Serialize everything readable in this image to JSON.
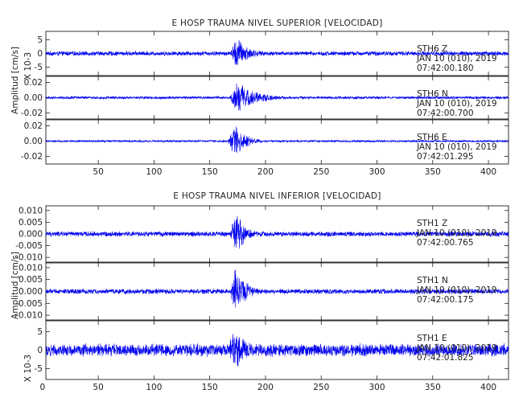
{
  "chart_data": [
    {
      "type": "line",
      "title": "E HOSP TRAUMA NIVEL SUPERIOR [VELOCIDAD]",
      "ylabel": "Amplitud [cm/s]",
      "xlim": [
        3,
        418
      ],
      "xticks": [
        50,
        100,
        150,
        200,
        250,
        300,
        350,
        400
      ],
      "xtick_labels": [
        "50",
        "100",
        "150",
        "200",
        "250",
        "300",
        "350",
        "400"
      ],
      "line_color": "#0000ee",
      "series": [
        {
          "name": "STH6 Z",
          "station": "STH6",
          "component": "Z",
          "date": "JAN 10 (010), 2019",
          "time": "07:42:00.180",
          "scale_label": "X 10-3",
          "ylim": [
            -8,
            8
          ],
          "yticks": [
            5,
            0,
            -5
          ],
          "ytick_labels": [
            "5",
            "0",
            "-5"
          ],
          "noise_level": 0.9,
          "event": {
            "onset": 168,
            "peak_time": 174,
            "peak_amplitude": 7,
            "decay": 11
          }
        },
        {
          "name": "STH6 N",
          "station": "STH6",
          "component": "N",
          "date": "JAN 10 (010), 2019",
          "time": "07:42:00.700",
          "ylim": [
            -0.028,
            0.028
          ],
          "yticks": [
            0.02,
            0.0,
            -0.02
          ],
          "ytick_labels": [
            "0.02",
            "0.00",
            "-0.02"
          ],
          "noise_level": 0.002,
          "event": {
            "onset": 168,
            "peak_time": 174,
            "peak_amplitude": 0.024,
            "decay": 18
          }
        },
        {
          "name": "STH6 E",
          "station": "STH6",
          "component": "E",
          "date": "JAN 10 (010), 2019",
          "time": "07:42:01.295",
          "ylim": [
            -0.03,
            0.028
          ],
          "yticks": [
            0.02,
            0.0,
            -0.02
          ],
          "ytick_labels": [
            "0.02",
            "0.00",
            "-0.02"
          ],
          "noise_level": 0.0015,
          "event": {
            "onset": 166,
            "peak_time": 173,
            "peak_amplitude": 0.026,
            "decay": 10
          }
        }
      ]
    },
    {
      "type": "line",
      "title": "E HOSP TRAUMA NIVEL INFERIOR [VELOCIDAD]",
      "ylabel": "Amplitud [cm/s]",
      "xlim": [
        3,
        418
      ],
      "xticks": [
        0,
        50,
        100,
        150,
        200,
        250,
        300,
        350,
        400
      ],
      "xtick_labels": [
        "0",
        "50",
        "100",
        "150",
        "200",
        "250",
        "300",
        "350",
        "400"
      ],
      "line_color": "#0000ee",
      "series": [
        {
          "name": "STH1 Z",
          "station": "STH1",
          "component": "Z",
          "date": "JAN 10 (010), 2019",
          "time": "07:42:00.765",
          "ylim": [
            -0.012,
            0.012
          ],
          "yticks": [
            0.01,
            0.005,
            0.0,
            -0.005,
            -0.01
          ],
          "ytick_labels": [
            "0.010",
            "0.005",
            "0.000",
            "-0.005",
            "-0.010"
          ],
          "noise_level": 0.0012,
          "event": {
            "onset": 168,
            "peak_time": 173,
            "peak_amplitude": 0.011,
            "decay": 9
          }
        },
        {
          "name": "STH1 N",
          "station": "STH1",
          "component": "N",
          "date": "JAN 10 (010), 2019",
          "time": "07:42:00.175",
          "ylim": [
            -0.012,
            0.012
          ],
          "yticks": [
            0.01,
            0.005,
            0.0,
            -0.005,
            -0.01
          ],
          "ytick_labels": [
            "0.010",
            "0.005",
            "0.000",
            "-0.005",
            "-0.010"
          ],
          "noise_level": 0.0012,
          "event": {
            "onset": 168,
            "peak_time": 173,
            "peak_amplitude": 0.011,
            "decay": 10
          }
        },
        {
          "name": "STH1 E",
          "station": "STH1",
          "component": "E",
          "date": "JAN 10 (010), 2019",
          "time": "07:42:01.825",
          "scale_label": "X 10-3",
          "ylim": [
            -8,
            8
          ],
          "yticks": [
            5,
            0,
            -5
          ],
          "ytick_labels": [
            "5",
            "0",
            "-5"
          ],
          "noise_level": 1.9,
          "event": {
            "onset": 165,
            "peak_time": 172,
            "peak_amplitude": 7,
            "decay": 12
          }
        }
      ]
    }
  ]
}
